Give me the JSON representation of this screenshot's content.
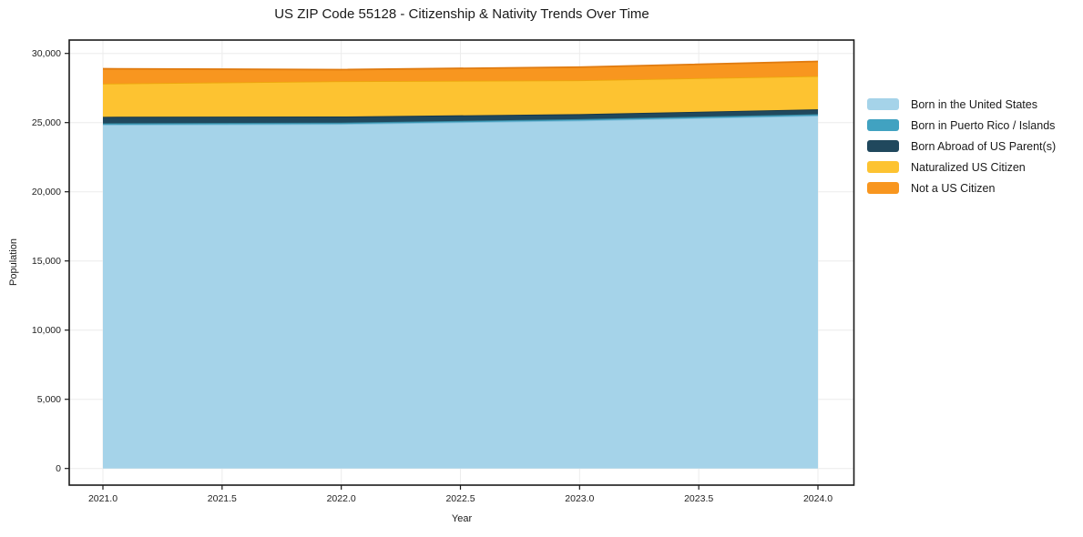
{
  "title": "US ZIP Code 55128 - Citizenship & Nativity Trends Over Time",
  "axes": {
    "x_title": "Year",
    "y_title": "Population"
  },
  "chart_data": {
    "type": "area",
    "stacked": true,
    "title": "US ZIP Code 55128 - Citizenship & Nativity Trends Over Time",
    "xlabel": "Year",
    "ylabel": "Population",
    "x": [
      2021,
      2022,
      2023,
      2024
    ],
    "series": [
      {
        "name": "Born in the United States",
        "color": "#a5d3e9",
        "edge": "#7fbcd9",
        "values": [
          24850,
          24900,
          25150,
          25500
        ]
      },
      {
        "name": "Born in Puerto Rico / Islands",
        "color": "#41a2c1",
        "edge": "#35879f",
        "values": [
          100,
          100,
          100,
          110
        ]
      },
      {
        "name": "Born Abroad of US Parent(s)",
        "color": "#20485d",
        "edge": "#16364a",
        "values": [
          470,
          440,
          360,
          350
        ]
      },
      {
        "name": "Naturalized US Citizen",
        "color": "#fdc331",
        "edge": "#eda70c",
        "values": [
          2400,
          2550,
          2450,
          2400
        ]
      },
      {
        "name": "Not a US Citizen",
        "color": "#f8961f",
        "edge": "#e07b10",
        "values": [
          1070,
          840,
          950,
          1060
        ]
      }
    ],
    "xlim": [
      2020.86,
      2024.15
    ],
    "ylim": [
      -1200,
      30970
    ],
    "xticks": {
      "values": [
        2021.0,
        2021.5,
        2022.0,
        2022.5,
        2023.0,
        2023.5,
        2024.0
      ],
      "labels": [
        "2021.0",
        "2021.5",
        "2022.0",
        "2022.5",
        "2023.0",
        "2023.5",
        "2024.0"
      ]
    },
    "yticks": {
      "values": [
        0,
        5000,
        10000,
        15000,
        20000,
        25000,
        30000
      ],
      "labels": [
        "0",
        "5,000",
        "10,000",
        "15,000",
        "20,000",
        "25,000",
        "30,000"
      ]
    },
    "grid": true,
    "grid_color": "#ececec",
    "spine_color": "#1a1a1a",
    "legend_position": "right-outside"
  }
}
